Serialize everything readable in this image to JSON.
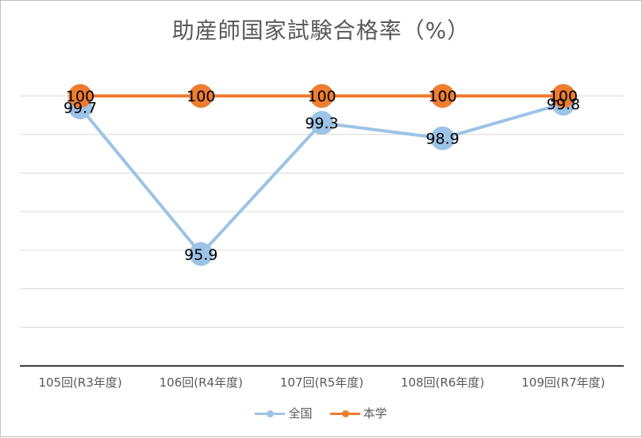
{
  "chart_data": {
    "type": "line",
    "title": "助産師国家試験合格率（%）",
    "xlabel": "",
    "ylabel": "",
    "categories": [
      "105回(R3年度)",
      "106回(R4年度)",
      "107回(R5年度)",
      "108回(R6年度)",
      "109回(R7年度)"
    ],
    "ylim": [
      93,
      100.7
    ],
    "gridlines": [
      93,
      94,
      95,
      96,
      97,
      98,
      99,
      100,
      101
    ],
    "grid": true,
    "legend_position": "bottom",
    "series": [
      {
        "name": "全国",
        "color": "#9dc3e6",
        "values": [
          99.7,
          95.9,
          99.3,
          98.9,
          99.8
        ],
        "labels": [
          "99.7",
          "95.9",
          "99.3",
          "98.9",
          "99.8"
        ]
      },
      {
        "name": "本学",
        "color": "#ed7d31",
        "values": [
          100,
          100,
          100,
          100,
          100
        ],
        "labels": [
          "100",
          "100",
          "100",
          "100",
          "100"
        ]
      }
    ]
  }
}
